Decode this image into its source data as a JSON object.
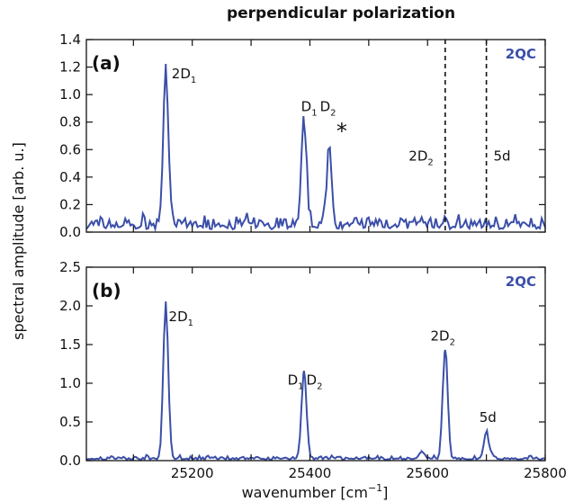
{
  "chart_data": [
    {
      "panel": "(a)",
      "type": "line",
      "title": "perpendicular polarization",
      "tag": "2QC",
      "xlim": [
        25020,
        25800
      ],
      "ylim": [
        0,
        1.4
      ],
      "yticks": [
        "0.0",
        "0.2",
        "0.4",
        "0.6",
        "0.8",
        "1.0",
        "1.2",
        "1.4"
      ],
      "line_color": "#3b4fa8",
      "dashed_lines_x": [
        25630,
        25700
      ],
      "noise_level": 0.1,
      "peaks": [
        {
          "x": 25155,
          "y": 1.2
        },
        {
          "x": 25390,
          "y": 0.79
        },
        {
          "x": 25433,
          "y": 0.61
        }
      ],
      "annotations": [
        {
          "main": "2D",
          "sub": "1",
          "x": 25165,
          "y": 1.12
        },
        {
          "main": "D",
          "sub": "1",
          "main2": "D",
          "sub2": "2",
          "x": 25385,
          "y": 0.88
        },
        {
          "main": "*",
          "x": 25445,
          "y": 0.68,
          "star": true
        },
        {
          "main": "2D",
          "sub": "2",
          "x": 25568,
          "y": 0.52
        },
        {
          "main": "5d",
          "x": 25712,
          "y": 0.52
        }
      ]
    },
    {
      "panel": "(b)",
      "type": "line",
      "tag": "2QC",
      "xlim": [
        25020,
        25800
      ],
      "ylim": [
        0,
        2.5
      ],
      "yticks": [
        "0.0",
        "0.5",
        "1.0",
        "1.5",
        "2.0",
        "2.5"
      ],
      "xticks": [
        "25200",
        "25400",
        "25600",
        "25800"
      ],
      "xtick_values": [
        25200,
        25400,
        25600,
        25800
      ],
      "xlabel_main": "wavenumber [cm",
      "xlabel_sup": "−1",
      "xlabel_end": "]",
      "ylabel": "spectral amplitude [arb. u.]",
      "line_color": "#3b4fa8",
      "noise_level": 0.05,
      "peaks": [
        {
          "x": 25155,
          "y": 2.04
        },
        {
          "x": 25390,
          "y": 1.16
        },
        {
          "x": 25630,
          "y": 1.43
        },
        {
          "x": 25700,
          "y": 0.37
        },
        {
          "x": 25590,
          "y": 0.12
        }
      ],
      "annotations": [
        {
          "main": "2D",
          "sub": "1",
          "x": 25160,
          "y": 1.8
        },
        {
          "main": "D",
          "sub": "1",
          "main2": "D",
          "sub2": "2",
          "x": 25362,
          "y": 0.98
        },
        {
          "main": "2D",
          "sub": "2",
          "x": 25605,
          "y": 1.55
        },
        {
          "main": "5d",
          "x": 25688,
          "y": 0.5
        }
      ]
    }
  ]
}
